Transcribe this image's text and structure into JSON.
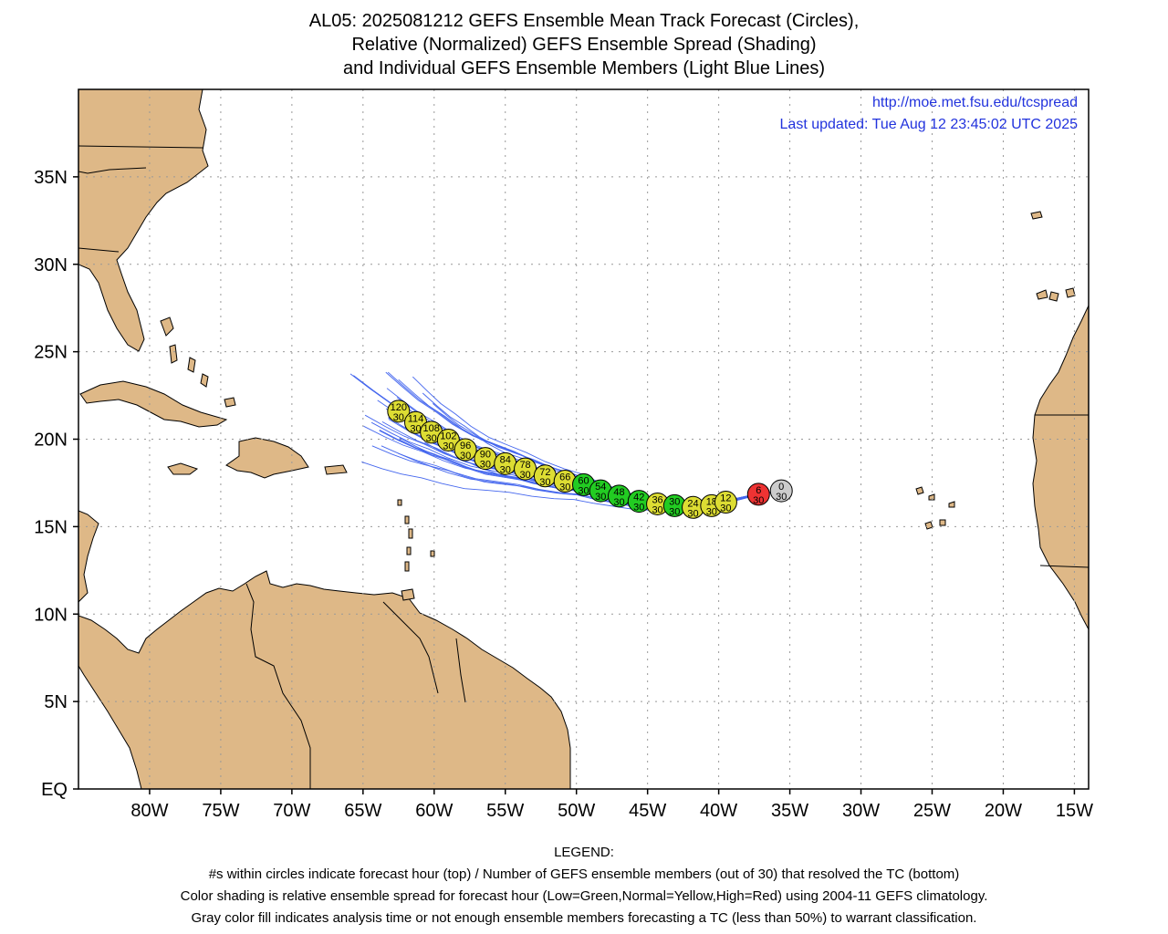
{
  "title": {
    "line1": "AL05: 2025081212 GEFS Ensemble Mean Track Forecast (Circles),",
    "line2": "Relative (Normalized) GEFS Ensemble Spread (Shading)",
    "line3": "and Individual GEFS Ensemble Members (Light Blue Lines)"
  },
  "source": {
    "url": "http://moe.met.fsu.edu/tcspread",
    "updated": "Last updated: Tue Aug 12 23:45:02 UTC 2025"
  },
  "legend": {
    "heading": "LEGEND:",
    "line1": "#s within circles indicate forecast hour (top) / Number of GEFS ensemble members (out of 30) that resolved the TC (bottom)",
    "line2": "Color shading is relative ensemble spread for forecast hour (Low=Green,Normal=Yellow,High=Red) using 2004-11 GEFS climatology.",
    "line3": "Gray color fill indicates analysis time or not enough ensemble members forecasting a TC (less than 50%) to warrant classification."
  },
  "colors": {
    "land": "#deb887",
    "low": "#22cc22",
    "normal": "#dddd33",
    "high": "#ee3333",
    "gray": "#cccccc",
    "member_track": "#4466ee"
  },
  "map": {
    "lon_range": [
      -85,
      -14
    ],
    "lat_range": [
      0,
      40
    ],
    "lon_ticks": [
      {
        "v": -80,
        "label": "80W"
      },
      {
        "v": -75,
        "label": "75W"
      },
      {
        "v": -70,
        "label": "70W"
      },
      {
        "v": -65,
        "label": "65W"
      },
      {
        "v": -60,
        "label": "60W"
      },
      {
        "v": -55,
        "label": "55W"
      },
      {
        "v": -50,
        "label": "50W"
      },
      {
        "v": -45,
        "label": "45W"
      },
      {
        "v": -40,
        "label": "40W"
      },
      {
        "v": -35,
        "label": "35W"
      },
      {
        "v": -30,
        "label": "30W"
      },
      {
        "v": -25,
        "label": "25W"
      },
      {
        "v": -20,
        "label": "20W"
      },
      {
        "v": -15,
        "label": "15W"
      }
    ],
    "lat_ticks": [
      {
        "v": 0,
        "label": "EQ"
      },
      {
        "v": 5,
        "label": "5N"
      },
      {
        "v": 10,
        "label": "10N"
      },
      {
        "v": 15,
        "label": "15N"
      },
      {
        "v": 20,
        "label": "20N"
      },
      {
        "v": 25,
        "label": "25N"
      },
      {
        "v": 30,
        "label": "30N"
      },
      {
        "v": 35,
        "label": "35N"
      }
    ]
  },
  "track": [
    {
      "hour": "0",
      "members": "30",
      "lon": -35.6,
      "lat": 17.05,
      "spread": "gray"
    },
    {
      "hour": "6",
      "members": "30",
      "lon": -37.2,
      "lat": 16.85,
      "spread": "high"
    },
    {
      "hour": "12",
      "members": "30",
      "lon": -39.5,
      "lat": 16.4,
      "spread": "normal"
    },
    {
      "hour": "18",
      "members": "30",
      "lon": -40.5,
      "lat": 16.2,
      "spread": "normal"
    },
    {
      "hour": "24",
      "members": "30",
      "lon": -41.8,
      "lat": 16.1,
      "spread": "normal"
    },
    {
      "hour": "30",
      "members": "30",
      "lon": -43.1,
      "lat": 16.2,
      "spread": "low"
    },
    {
      "hour": "36",
      "members": "30",
      "lon": -44.3,
      "lat": 16.3,
      "spread": "normal"
    },
    {
      "hour": "42",
      "members": "30",
      "lon": -45.6,
      "lat": 16.45,
      "spread": "low"
    },
    {
      "hour": "48",
      "members": "30",
      "lon": -47.0,
      "lat": 16.75,
      "spread": "low"
    },
    {
      "hour": "54",
      "members": "30",
      "lon": -48.3,
      "lat": 17.05,
      "spread": "low"
    },
    {
      "hour": "60",
      "members": "30",
      "lon": -49.5,
      "lat": 17.4,
      "spread": "low"
    },
    {
      "hour": "66",
      "members": "30",
      "lon": -50.8,
      "lat": 17.6,
      "spread": "normal"
    },
    {
      "hour": "72",
      "members": "30",
      "lon": -52.2,
      "lat": 17.9,
      "spread": "normal"
    },
    {
      "hour": "78",
      "members": "30",
      "lon": -53.6,
      "lat": 18.3,
      "spread": "normal"
    },
    {
      "hour": "84",
      "members": "30",
      "lon": -55.0,
      "lat": 18.6,
      "spread": "normal"
    },
    {
      "hour": "90",
      "members": "30",
      "lon": -56.4,
      "lat": 18.9,
      "spread": "normal"
    },
    {
      "hour": "96",
      "members": "30",
      "lon": -57.8,
      "lat": 19.4,
      "spread": "normal"
    },
    {
      "hour": "102",
      "members": "30",
      "lon": -59.0,
      "lat": 19.95,
      "spread": "normal"
    },
    {
      "hour": "108",
      "members": "30",
      "lon": -60.2,
      "lat": 20.4,
      "spread": "normal"
    },
    {
      "hour": "114",
      "members": "30",
      "lon": -61.3,
      "lat": 20.95,
      "spread": "normal"
    },
    {
      "hour": "120",
      "members": "30",
      "lon": -62.5,
      "lat": 21.6,
      "spread": "normal"
    }
  ]
}
